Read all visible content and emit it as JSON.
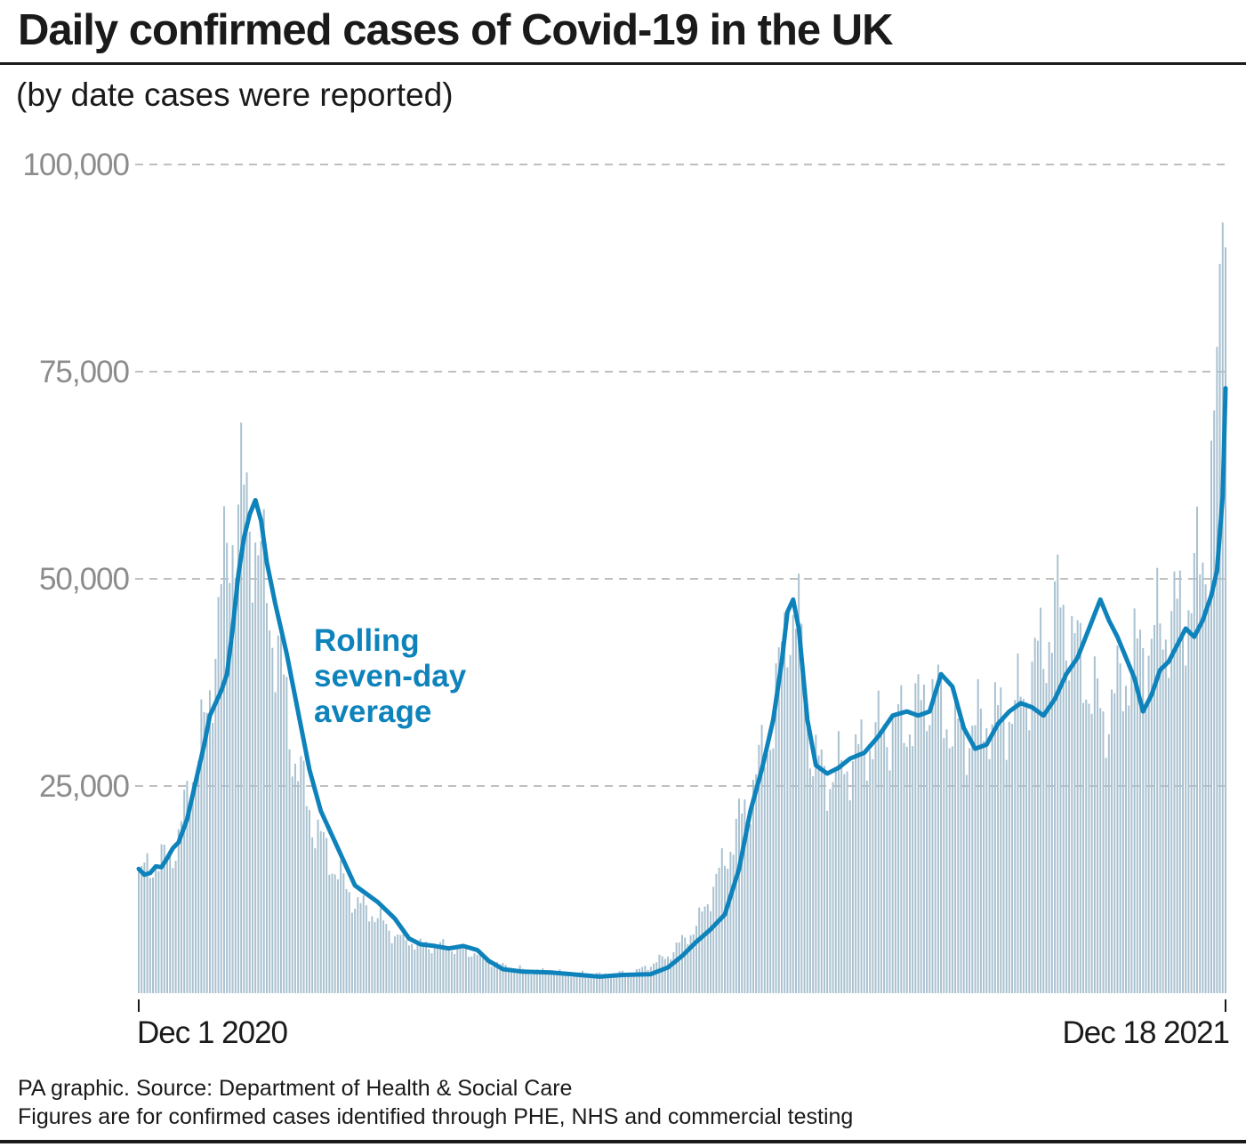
{
  "header": {
    "title": "Daily confirmed cases of Covid-19 in the UK",
    "subtitle": "(by date cases were reported)"
  },
  "footer": {
    "source": "PA graphic. Source: Department of Health & Social Care",
    "note": "Figures are for confirmed cases identified through PHE, NHS and commercial testing"
  },
  "colors": {
    "bars": "#a9c1d0",
    "average_line": "#0e83bb",
    "grid": "#aaaaaa",
    "y_tick_labels": "#8c8c8c",
    "text": "#1a1a1a"
  },
  "chart_data": {
    "type": "bar",
    "title": "Daily confirmed cases of Covid-19 in the UK",
    "subtitle": "(by date cases were reported)",
    "x_start": "2020-12-01",
    "x_end": "2021-12-18",
    "x_tick_labels": [
      "Dec 1 2020",
      "Dec 18 2021"
    ],
    "y_ticks": [
      {
        "value": 25000,
        "label": "25,000"
      },
      {
        "value": 50000,
        "label": "50,000"
      },
      {
        "value": 75000,
        "label": "75,000"
      },
      {
        "value": 100000,
        "label": "100,000"
      }
    ],
    "ylim": [
      0,
      100000
    ],
    "grid": "horizontal dashed",
    "annotation": "Rolling seven-day average",
    "series": [
      {
        "name": "Daily confirmed cases",
        "kind": "bars",
        "keyframes": [
          [
            "2020-12-01",
            14000
          ],
          [
            "2020-12-05",
            15500
          ],
          [
            "2020-12-10",
            16000
          ],
          [
            "2020-12-15",
            18500
          ],
          [
            "2020-12-20",
            27000
          ],
          [
            "2020-12-25",
            33000
          ],
          [
            "2020-12-29",
            46000
          ],
          [
            "2021-01-02",
            55000
          ],
          [
            "2021-01-06",
            60000
          ],
          [
            "2021-01-10",
            57000
          ],
          [
            "2021-01-15",
            48000
          ],
          [
            "2021-01-20",
            39000
          ],
          [
            "2021-01-25",
            28000
          ],
          [
            "2021-02-01",
            20000
          ],
          [
            "2021-02-08",
            15000
          ],
          [
            "2021-02-15",
            11000
          ],
          [
            "2021-02-22",
            9500
          ],
          [
            "2021-03-01",
            7000
          ],
          [
            "2021-03-10",
            5800
          ],
          [
            "2021-03-20",
            5600
          ],
          [
            "2021-03-30",
            4800
          ],
          [
            "2021-04-05",
            3500
          ],
          [
            "2021-04-15",
            2800
          ],
          [
            "2021-05-01",
            2400
          ],
          [
            "2021-05-15",
            2200
          ],
          [
            "2021-05-25",
            2600
          ],
          [
            "2021-06-05",
            4500
          ],
          [
            "2021-06-15",
            8000
          ],
          [
            "2021-06-25",
            16000
          ],
          [
            "2021-07-05",
            25000
          ],
          [
            "2021-07-12",
            33000
          ],
          [
            "2021-07-17",
            46000
          ],
          [
            "2021-07-21",
            44000
          ],
          [
            "2021-07-26",
            28000
          ],
          [
            "2021-08-01",
            26000
          ],
          [
            "2021-08-10",
            28500
          ],
          [
            "2021-08-20",
            32000
          ],
          [
            "2021-08-30",
            33000
          ],
          [
            "2021-09-05",
            37000
          ],
          [
            "2021-09-15",
            31000
          ],
          [
            "2021-09-25",
            33000
          ],
          [
            "2021-10-05",
            34000
          ],
          [
            "2021-10-15",
            42000
          ],
          [
            "2021-10-21",
            47000
          ],
          [
            "2021-10-28",
            40000
          ],
          [
            "2021-11-05",
            33000
          ],
          [
            "2021-11-15",
            40000
          ],
          [
            "2021-11-25",
            44000
          ],
          [
            "2021-12-05",
            47000
          ],
          [
            "2021-12-12",
            55000
          ],
          [
            "2021-12-15",
            78000
          ],
          [
            "2021-12-16",
            88000
          ],
          [
            "2021-12-17",
            93000
          ],
          [
            "2021-12-18",
            90000
          ]
        ]
      },
      {
        "name": "Rolling seven-day average",
        "kind": "line",
        "points": [
          [
            "2020-12-01",
            15000
          ],
          [
            "2020-12-03",
            14300
          ],
          [
            "2020-12-05",
            14500
          ],
          [
            "2020-12-07",
            15300
          ],
          [
            "2020-12-09",
            15200
          ],
          [
            "2020-12-11",
            16300
          ],
          [
            "2020-12-13",
            17500
          ],
          [
            "2020-12-15",
            18200
          ],
          [
            "2020-12-18",
            21000
          ],
          [
            "2020-12-21",
            25500
          ],
          [
            "2020-12-24",
            30000
          ],
          [
            "2020-12-26",
            33500
          ],
          [
            "2020-12-28",
            35000
          ],
          [
            "2020-12-30",
            36500
          ],
          [
            "2021-01-01",
            38500
          ],
          [
            "2021-01-03",
            44000
          ],
          [
            "2021-01-05",
            50500
          ],
          [
            "2021-01-07",
            55000
          ],
          [
            "2021-01-09",
            57800
          ],
          [
            "2021-01-11",
            59500
          ],
          [
            "2021-01-13",
            57000
          ],
          [
            "2021-01-15",
            52000
          ],
          [
            "2021-01-18",
            47000
          ],
          [
            "2021-01-22",
            41000
          ],
          [
            "2021-01-26",
            34000
          ],
          [
            "2021-01-30",
            27000
          ],
          [
            "2021-02-03",
            22000
          ],
          [
            "2021-02-07",
            19000
          ],
          [
            "2021-02-11",
            16000
          ],
          [
            "2021-02-15",
            13000
          ],
          [
            "2021-02-19",
            12000
          ],
          [
            "2021-02-23",
            11000
          ],
          [
            "2021-03-01",
            9000
          ],
          [
            "2021-03-06",
            6600
          ],
          [
            "2021-03-10",
            5900
          ],
          [
            "2021-03-15",
            5700
          ],
          [
            "2021-03-20",
            5400
          ],
          [
            "2021-03-25",
            5700
          ],
          [
            "2021-03-30",
            5200
          ],
          [
            "2021-04-03",
            3900
          ],
          [
            "2021-04-08",
            2900
          ],
          [
            "2021-04-15",
            2600
          ],
          [
            "2021-04-25",
            2500
          ],
          [
            "2021-05-05",
            2200
          ],
          [
            "2021-05-12",
            2000
          ],
          [
            "2021-05-20",
            2200
          ],
          [
            "2021-05-30",
            2300
          ],
          [
            "2021-06-05",
            3100
          ],
          [
            "2021-06-10",
            4500
          ],
          [
            "2021-06-15",
            6200
          ],
          [
            "2021-06-20",
            7700
          ],
          [
            "2021-06-25",
            9500
          ],
          [
            "2021-06-30",
            15000
          ],
          [
            "2021-07-04",
            22000
          ],
          [
            "2021-07-08",
            27000
          ],
          [
            "2021-07-12",
            33000
          ],
          [
            "2021-07-15",
            40000
          ],
          [
            "2021-07-17",
            46000
          ],
          [
            "2021-07-19",
            47500
          ],
          [
            "2021-07-21",
            44000
          ],
          [
            "2021-07-24",
            33000
          ],
          [
            "2021-07-27",
            27500
          ],
          [
            "2021-07-31",
            26500
          ],
          [
            "2021-08-04",
            27200
          ],
          [
            "2021-08-08",
            28300
          ],
          [
            "2021-08-13",
            29000
          ],
          [
            "2021-08-18",
            31000
          ],
          [
            "2021-08-23",
            33500
          ],
          [
            "2021-08-28",
            34000
          ],
          [
            "2021-09-01",
            33500
          ],
          [
            "2021-09-05",
            34000
          ],
          [
            "2021-09-09",
            38500
          ],
          [
            "2021-09-13",
            37000
          ],
          [
            "2021-09-17",
            32000
          ],
          [
            "2021-09-21",
            29500
          ],
          [
            "2021-09-25",
            30000
          ],
          [
            "2021-09-29",
            32500
          ],
          [
            "2021-10-03",
            34000
          ],
          [
            "2021-10-07",
            35000
          ],
          [
            "2021-10-11",
            34500
          ],
          [
            "2021-10-15",
            33500
          ],
          [
            "2021-10-19",
            35500
          ],
          [
            "2021-10-23",
            38500
          ],
          [
            "2021-10-27",
            40500
          ],
          [
            "2021-10-31",
            44000
          ],
          [
            "2021-11-04",
            47500
          ],
          [
            "2021-11-07",
            45000
          ],
          [
            "2021-11-10",
            43000
          ],
          [
            "2021-11-13",
            40500
          ],
          [
            "2021-11-16",
            38000
          ],
          [
            "2021-11-19",
            34000
          ],
          [
            "2021-11-22",
            36000
          ],
          [
            "2021-11-25",
            39000
          ],
          [
            "2021-11-28",
            40000
          ],
          [
            "2021-12-01",
            42000
          ],
          [
            "2021-12-04",
            44000
          ],
          [
            "2021-12-07",
            43000
          ],
          [
            "2021-12-10",
            45000
          ],
          [
            "2021-12-13",
            48000
          ],
          [
            "2021-12-15",
            51000
          ],
          [
            "2021-12-17",
            60000
          ],
          [
            "2021-12-18",
            73000
          ]
        ]
      }
    ]
  }
}
